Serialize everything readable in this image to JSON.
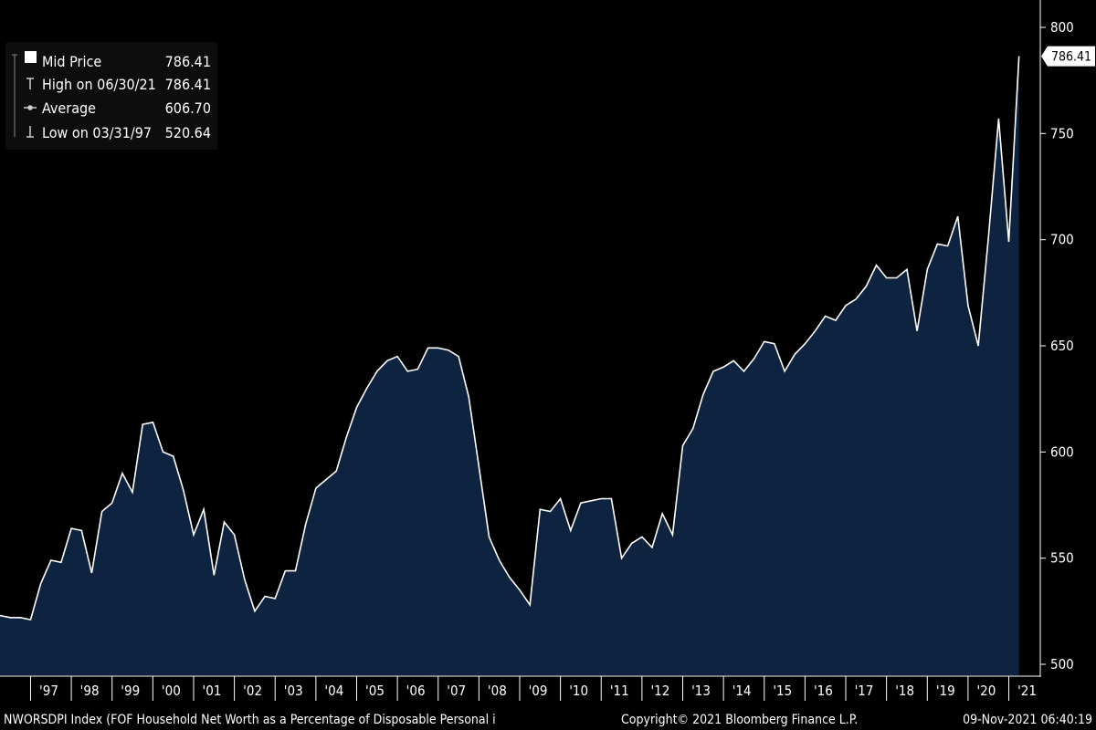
{
  "chart_data": {
    "type": "area",
    "y_range": [
      500,
      800
    ],
    "y_ticks": [
      500,
      550,
      600,
      650,
      700,
      750,
      800
    ],
    "x_tick_labels": [
      "'97",
      "'98",
      "'99",
      "'00",
      "'01",
      "'02",
      "'03",
      "'04",
      "'05",
      "'06",
      "'07",
      "'08",
      "'09",
      "'10",
      "'11",
      "'12",
      "'13",
      "'14",
      "'15",
      "'16",
      "'17",
      "'18",
      "'19",
      "'20",
      "'21"
    ],
    "series": [
      {
        "name": "Mid Price",
        "x": [
          1996.25,
          1996.5,
          1996.75,
          1997.0,
          1997.25,
          1997.5,
          1997.75,
          1998.0,
          1998.25,
          1998.5,
          1998.75,
          1999.0,
          1999.25,
          1999.5,
          1999.75,
          2000.0,
          2000.25,
          2000.5,
          2000.75,
          2001.0,
          2001.25,
          2001.5,
          2001.75,
          2002.0,
          2002.25,
          2002.5,
          2002.75,
          2003.0,
          2003.25,
          2003.5,
          2003.75,
          2004.0,
          2004.25,
          2004.5,
          2004.75,
          2005.0,
          2005.25,
          2005.5,
          2005.75,
          2006.0,
          2006.25,
          2006.5,
          2006.75,
          2007.0,
          2007.25,
          2007.5,
          2007.75,
          2008.0,
          2008.25,
          2008.5,
          2008.75,
          2009.0,
          2009.25,
          2009.5,
          2009.75,
          2010.0,
          2010.25,
          2010.5,
          2010.75,
          2011.0,
          2011.25,
          2011.5,
          2011.75,
          2012.0,
          2012.25,
          2012.5,
          2012.75,
          2013.0,
          2013.25,
          2013.5,
          2013.75,
          2014.0,
          2014.25,
          2014.5,
          2014.75,
          2015.0,
          2015.25,
          2015.5,
          2015.75,
          2016.0,
          2016.25,
          2016.5,
          2016.75,
          2017.0,
          2017.25,
          2017.5,
          2017.75,
          2018.0,
          2018.25,
          2018.5,
          2018.75,
          2019.0,
          2019.25,
          2019.5,
          2019.75,
          2020.0,
          2020.25,
          2020.5,
          2020.75,
          2021.0,
          2021.25
        ],
        "values": [
          523,
          522,
          522,
          521,
          538,
          549,
          548,
          564,
          563,
          543,
          572,
          576,
          590,
          581,
          613,
          614,
          600,
          598,
          582,
          561,
          573,
          542,
          567,
          561,
          540,
          525,
          532,
          531,
          544,
          544,
          566,
          583,
          587,
          591,
          607,
          621,
          630,
          638,
          643,
          645,
          638,
          639,
          649,
          649,
          648,
          645,
          626,
          593,
          560,
          549,
          541,
          535,
          528,
          573,
          572,
          578,
          563,
          576,
          577,
          578,
          578,
          550,
          557,
          560,
          555,
          571,
          561,
          603,
          611,
          627,
          638,
          640,
          643,
          638,
          644,
          652,
          651,
          638,
          646,
          651,
          657,
          664,
          662,
          669,
          672,
          678,
          688,
          682,
          682,
          686,
          657,
          686,
          698,
          697,
          711,
          669,
          650,
          701,
          757,
          699,
          786.41
        ]
      }
    ],
    "legend": {
      "placement": "top-left",
      "items": [
        {
          "label": "Mid Price",
          "value": "786.41"
        },
        {
          "label": "High on 06/30/21",
          "value": "786.41"
        },
        {
          "label": "Average",
          "value": "606.70"
        },
        {
          "label": "Low on 03/31/97",
          "value": "520.64"
        }
      ]
    },
    "last_value_label": "786.41",
    "grid": false
  },
  "colors": {
    "background": "#000000",
    "fill": "#0d2340",
    "line": "#ffffff"
  },
  "footer": {
    "left": "NWORSDPI Index (FOF Household Net Worth as a Percentage of Disposable Personal i",
    "center": "Copyright© 2021 Bloomberg Finance L.P.",
    "right": "09-Nov-2021 06:40:19"
  }
}
